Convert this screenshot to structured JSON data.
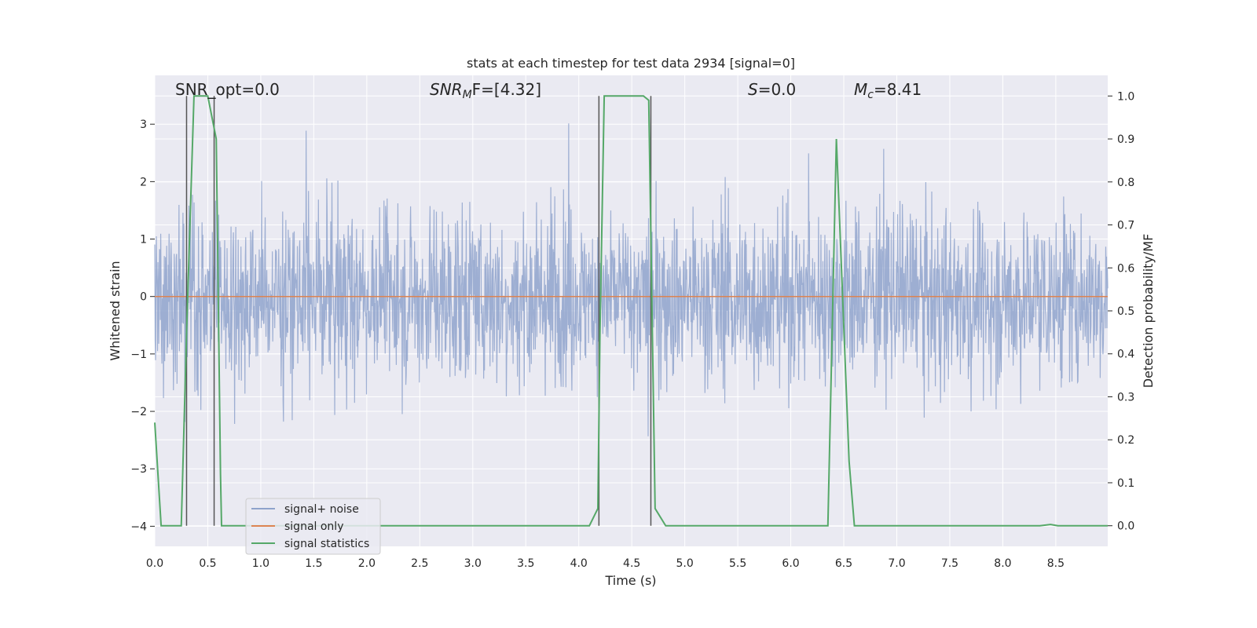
{
  "chart_data": {
    "type": "line",
    "title": "stats at each timestep for test data 2934 [signal=0]",
    "xlabel": "Time (s)",
    "ylabel": "Whitened strain",
    "y2label": "Detection probability/MF",
    "xlim": [
      0.0,
      8.99
    ],
    "ylim": [
      -4.35,
      3.85
    ],
    "y2lim": [
      -0.048,
      1.048
    ],
    "xticks": [
      "0.0",
      "0.5",
      "1.0",
      "1.5",
      "2.0",
      "2.5",
      "3.0",
      "3.5",
      "4.0",
      "4.5",
      "5.0",
      "5.5",
      "6.0",
      "6.5",
      "7.0",
      "7.5",
      "8.0",
      "8.5"
    ],
    "yticks": [
      "-4",
      "-3",
      "-2",
      "-1",
      "0",
      "1",
      "2",
      "3"
    ],
    "y2ticks": [
      "0.0",
      "0.1",
      "0.2",
      "0.3",
      "0.4",
      "0.5",
      "0.6",
      "0.7",
      "0.8",
      "0.9",
      "1.0"
    ],
    "grid": true,
    "legend_position": "lower-left",
    "annotations": {
      "snr_opt": "SNR_opt=0.0",
      "snr_mf_sym": "SNR",
      "snr_mf_sub": "M",
      "snr_mf_rest": "F=[4.32]",
      "s_sym": "S",
      "s_rest": "=0.0",
      "mc_sym": "M",
      "mc_sub": "c",
      "mc_rest": "=8.41"
    },
    "series": [
      {
        "name": "signal+ noise",
        "color": "#8fa3cc",
        "kind": "noise",
        "approx_range": [
          -3.5,
          3.5
        ]
      },
      {
        "name": "signal only",
        "color": "#dd8452",
        "kind": "constant",
        "values": [
          0,
          0
        ]
      },
      {
        "name": "signal statistics",
        "color": "#55a868",
        "axis": "right",
        "x": [
          0.0,
          0.06,
          0.25,
          0.3,
          0.37,
          0.5,
          0.58,
          0.62,
          0.63,
          4.1,
          4.18,
          4.2,
          4.24,
          4.61,
          4.66,
          4.72,
          4.82,
          5.0,
          6.35,
          6.43,
          6.55,
          6.6,
          8.35,
          8.45,
          8.52,
          8.6,
          8.99
        ],
        "y": [
          0.24,
          0.0,
          0.0,
          0.45,
          1.0,
          1.0,
          0.9,
          0.12,
          0.0,
          0.0,
          0.04,
          0.45,
          1.0,
          1.0,
          0.99,
          0.04,
          0.0,
          0.0,
          0.0,
          0.9,
          0.15,
          0.0,
          0.0,
          0.003,
          0.0,
          0.0,
          0.0
        ]
      }
    ],
    "vlines": [
      0.3,
      0.56,
      4.19,
      4.68
    ]
  }
}
